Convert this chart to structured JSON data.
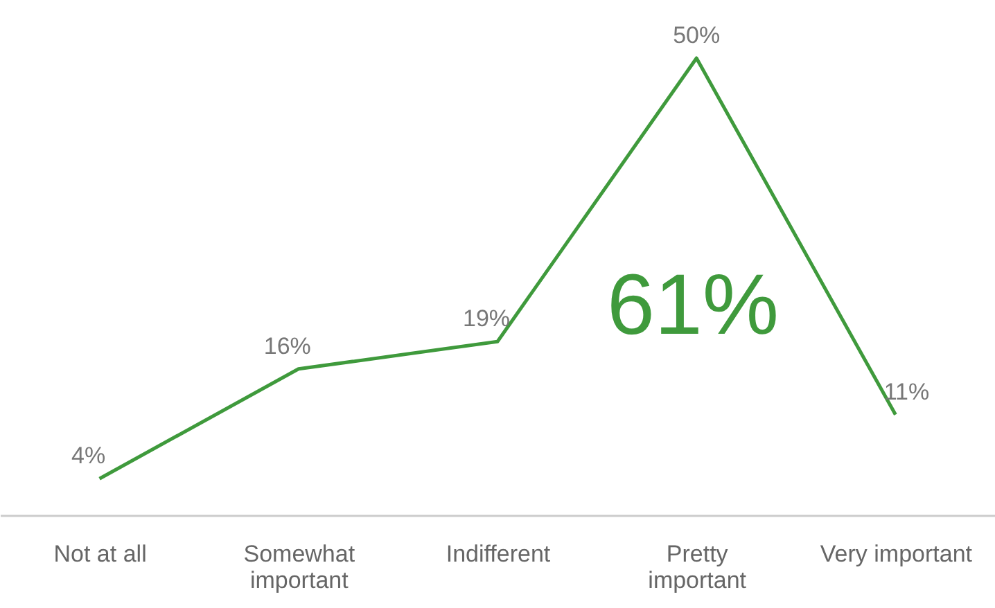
{
  "chart_data": {
    "type": "line",
    "categories": [
      "Not at all",
      "Somewhat important",
      "Indifferent",
      "Pretty important",
      "Very important"
    ],
    "series": [
      {
        "color": "#3f9a3c",
        "values": [
          4,
          16,
          19,
          50,
          11
        ],
        "value_labels": [
          "4%",
          "16%",
          "19%",
          "50%",
          "11%"
        ]
      }
    ],
    "annotations": [
      "61%"
    ]
  }
}
